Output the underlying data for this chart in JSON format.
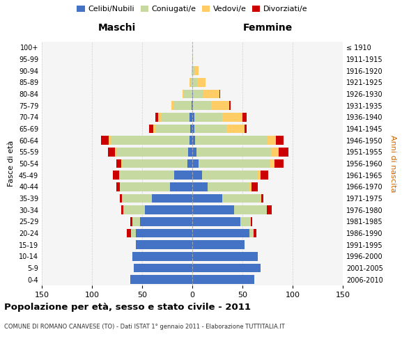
{
  "age_groups": [
    "0-4",
    "5-9",
    "10-14",
    "15-19",
    "20-24",
    "25-29",
    "30-34",
    "35-39",
    "40-44",
    "45-49",
    "50-54",
    "55-59",
    "60-64",
    "65-69",
    "70-74",
    "75-79",
    "80-84",
    "85-89",
    "90-94",
    "95-99",
    "100+"
  ],
  "birth_years": [
    "2006-2010",
    "2001-2005",
    "1996-2000",
    "1991-1995",
    "1986-1990",
    "1981-1985",
    "1976-1980",
    "1971-1975",
    "1966-1970",
    "1961-1965",
    "1956-1960",
    "1951-1955",
    "1946-1950",
    "1941-1945",
    "1936-1940",
    "1931-1935",
    "1926-1930",
    "1921-1925",
    "1916-1920",
    "1911-1915",
    "≤ 1910"
  ],
  "males": {
    "celibe": [
      62,
      58,
      60,
      56,
      56,
      52,
      47,
      40,
      22,
      18,
      5,
      4,
      3,
      2,
      3,
      1,
      0,
      0,
      0,
      0,
      0
    ],
    "coniugato": [
      0,
      0,
      0,
      0,
      5,
      8,
      22,
      30,
      50,
      55,
      65,
      72,
      78,
      35,
      28,
      18,
      8,
      2,
      1,
      0,
      0
    ],
    "vedovo": [
      0,
      0,
      0,
      0,
      0,
      0,
      0,
      0,
      0,
      0,
      1,
      1,
      2,
      2,
      3,
      2,
      2,
      1,
      0,
      0,
      0
    ],
    "divorziato": [
      0,
      0,
      0,
      0,
      4,
      2,
      2,
      2,
      4,
      6,
      5,
      7,
      8,
      4,
      3,
      0,
      0,
      0,
      0,
      0,
      0
    ]
  },
  "females": {
    "nubile": [
      62,
      68,
      65,
      52,
      57,
      48,
      42,
      30,
      15,
      10,
      6,
      4,
      3,
      2,
      2,
      1,
      1,
      0,
      0,
      0,
      0
    ],
    "coniugata": [
      0,
      0,
      0,
      0,
      4,
      10,
      32,
      38,
      42,
      55,
      72,
      75,
      72,
      32,
      28,
      18,
      10,
      5,
      3,
      1,
      0
    ],
    "vedova": [
      0,
      0,
      0,
      0,
      0,
      0,
      0,
      1,
      2,
      3,
      4,
      7,
      8,
      18,
      20,
      18,
      16,
      8,
      3,
      0,
      0
    ],
    "divorziata": [
      0,
      0,
      0,
      0,
      3,
      2,
      5,
      2,
      6,
      8,
      9,
      10,
      8,
      2,
      4,
      1,
      1,
      0,
      0,
      0,
      0
    ]
  },
  "colors": {
    "celibe": "#4472C4",
    "coniugato": "#c5d9a0",
    "vedovo": "#FFCC66",
    "divorziato": "#CC0000"
  },
  "xlim": 150,
  "title": "Popolazione per età, sesso e stato civile - 2011",
  "subtitle": "COMUNE DI ROMANO CANAVESE (TO) - Dati ISTAT 1° gennaio 2011 - Elaborazione TUTTITALIA.IT",
  "ylabel_left": "Fasce di età",
  "ylabel_right": "Anni di nascita",
  "xlabel_left": "Maschi",
  "xlabel_right": "Femmine",
  "legend_labels": [
    "Celibi/Nubili",
    "Coniugati/e",
    "Vedovi/e",
    "Divorziati/e"
  ],
  "bg_color": "#ffffff",
  "plot_bg_color": "#f5f5f5",
  "grid_color": "#cccccc"
}
